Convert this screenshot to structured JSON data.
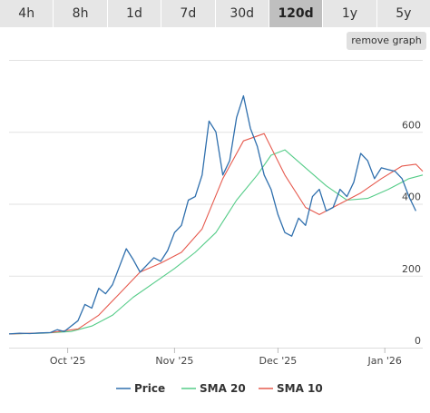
{
  "tabs": [
    {
      "label": "4h",
      "active": false
    },
    {
      "label": "8h",
      "active": false
    },
    {
      "label": "1d",
      "active": false
    },
    {
      "label": "7d",
      "active": false
    },
    {
      "label": "30d",
      "active": false
    },
    {
      "label": "120d",
      "active": true
    },
    {
      "label": "1y",
      "active": false
    },
    {
      "label": "5y",
      "active": false
    }
  ],
  "remove_graph_label": "remove graph",
  "chart_data": {
    "type": "line",
    "x_start": "2025-09-14",
    "x_end": "2026-01-12",
    "ylim": [
      0,
      800
    ],
    "yticks": [
      0,
      200,
      400,
      600
    ],
    "xticks": [
      {
        "label": "Oct '25",
        "date": "2025-10-01"
      },
      {
        "label": "Nov '25",
        "date": "2025-11-01"
      },
      {
        "label": "Dec '25",
        "date": "2025-12-01"
      },
      {
        "label": "Jan '26",
        "date": "2026-01-01"
      }
    ],
    "grid": true,
    "legend_position": "bottom",
    "series": [
      {
        "name": "Price",
        "color": "#2f6fad",
        "points": [
          [
            "2025-09-14",
            38
          ],
          [
            "2025-09-17",
            40
          ],
          [
            "2025-09-20",
            39
          ],
          [
            "2025-09-23",
            41
          ],
          [
            "2025-09-26",
            42
          ],
          [
            "2025-09-28",
            50
          ],
          [
            "2025-09-30",
            45
          ],
          [
            "2025-10-02",
            60
          ],
          [
            "2025-10-04",
            75
          ],
          [
            "2025-10-06",
            120
          ],
          [
            "2025-10-08",
            110
          ],
          [
            "2025-10-10",
            165
          ],
          [
            "2025-10-12",
            150
          ],
          [
            "2025-10-14",
            175
          ],
          [
            "2025-10-16",
            225
          ],
          [
            "2025-10-18",
            275
          ],
          [
            "2025-10-20",
            245
          ],
          [
            "2025-10-22",
            210
          ],
          [
            "2025-10-24",
            230
          ],
          [
            "2025-10-26",
            250
          ],
          [
            "2025-10-28",
            240
          ],
          [
            "2025-10-30",
            270
          ],
          [
            "2025-11-01",
            320
          ],
          [
            "2025-11-03",
            340
          ],
          [
            "2025-11-05",
            410
          ],
          [
            "2025-11-07",
            420
          ],
          [
            "2025-11-09",
            480
          ],
          [
            "2025-11-11",
            630
          ],
          [
            "2025-11-13",
            600
          ],
          [
            "2025-11-15",
            480
          ],
          [
            "2025-11-17",
            520
          ],
          [
            "2025-11-19",
            640
          ],
          [
            "2025-11-21",
            700
          ],
          [
            "2025-11-23",
            610
          ],
          [
            "2025-11-25",
            560
          ],
          [
            "2025-11-27",
            480
          ],
          [
            "2025-11-29",
            440
          ],
          [
            "2025-12-01",
            370
          ],
          [
            "2025-12-03",
            320
          ],
          [
            "2025-12-05",
            310
          ],
          [
            "2025-12-07",
            360
          ],
          [
            "2025-12-09",
            340
          ],
          [
            "2025-12-11",
            420
          ],
          [
            "2025-12-13",
            440
          ],
          [
            "2025-12-15",
            380
          ],
          [
            "2025-12-17",
            390
          ],
          [
            "2025-12-19",
            440
          ],
          [
            "2025-12-21",
            420
          ],
          [
            "2025-12-23",
            460
          ],
          [
            "2025-12-25",
            540
          ],
          [
            "2025-12-27",
            520
          ],
          [
            "2025-12-29",
            470
          ],
          [
            "2025-12-31",
            500
          ],
          [
            "2026-01-02",
            495
          ],
          [
            "2026-01-04",
            490
          ],
          [
            "2026-01-06",
            470
          ],
          [
            "2026-01-08",
            420
          ],
          [
            "2026-01-10",
            380
          ]
        ]
      },
      {
        "name": "SMA 20",
        "color": "#55cc88",
        "points": [
          [
            "2025-09-14",
            38
          ],
          [
            "2025-09-24",
            40
          ],
          [
            "2025-10-02",
            45
          ],
          [
            "2025-10-08",
            60
          ],
          [
            "2025-10-14",
            90
          ],
          [
            "2025-10-20",
            140
          ],
          [
            "2025-10-26",
            180
          ],
          [
            "2025-11-01",
            220
          ],
          [
            "2025-11-07",
            265
          ],
          [
            "2025-11-13",
            320
          ],
          [
            "2025-11-19",
            410
          ],
          [
            "2025-11-25",
            480
          ],
          [
            "2025-11-29",
            535
          ],
          [
            "2025-12-03",
            550
          ],
          [
            "2025-12-09",
            500
          ],
          [
            "2025-12-15",
            450
          ],
          [
            "2025-12-21",
            410
          ],
          [
            "2025-12-27",
            415
          ],
          [
            "2026-01-02",
            440
          ],
          [
            "2026-01-08",
            470
          ],
          [
            "2026-01-12",
            480
          ]
        ]
      },
      {
        "name": "SMA 10",
        "color": "#e65a4e",
        "points": [
          [
            "2025-09-14",
            38
          ],
          [
            "2025-09-26",
            42
          ],
          [
            "2025-10-04",
            52
          ],
          [
            "2025-10-10",
            90
          ],
          [
            "2025-10-16",
            150
          ],
          [
            "2025-10-22",
            210
          ],
          [
            "2025-10-28",
            235
          ],
          [
            "2025-11-03",
            265
          ],
          [
            "2025-11-09",
            330
          ],
          [
            "2025-11-15",
            470
          ],
          [
            "2025-11-21",
            575
          ],
          [
            "2025-11-27",
            595
          ],
          [
            "2025-12-03",
            480
          ],
          [
            "2025-12-09",
            390
          ],
          [
            "2025-12-13",
            370
          ],
          [
            "2025-12-19",
            400
          ],
          [
            "2025-12-25",
            430
          ],
          [
            "2025-12-31",
            470
          ],
          [
            "2026-01-06",
            505
          ],
          [
            "2026-01-10",
            510
          ],
          [
            "2026-01-12",
            490
          ]
        ]
      }
    ]
  }
}
